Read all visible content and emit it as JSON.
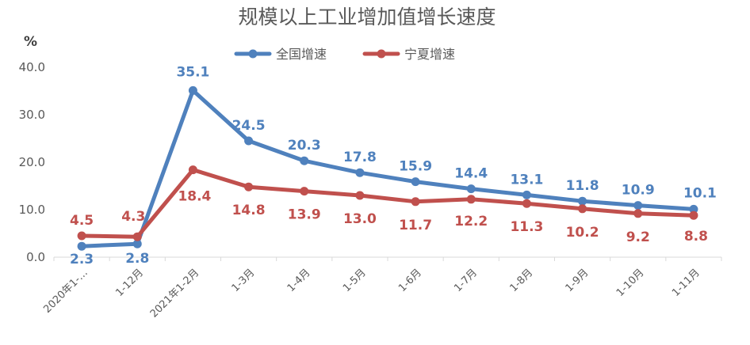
{
  "chart_data": {
    "type": "line",
    "title": "规模以上工业增加值增长速度",
    "ylabel": "%",
    "ylim": [
      0,
      40
    ],
    "yticks": [
      "0.0",
      "10.0",
      "20.0",
      "30.0",
      "40.0"
    ],
    "grid": false,
    "legend_position": "top-center",
    "categories": [
      "2020年1-…",
      "1-12月",
      "2021年1-2月",
      "1-3月",
      "1-4月",
      "1-5月",
      "1-6月",
      "1-7月",
      "1-8月",
      "1-9月",
      "1-10月",
      "1-11月"
    ],
    "series": [
      {
        "name": "全国增速",
        "color": "#4F81BD",
        "values": [
          2.3,
          2.8,
          35.1,
          24.5,
          20.3,
          17.8,
          15.9,
          14.4,
          13.1,
          11.8,
          10.9,
          10.1
        ],
        "labels": [
          "2.3",
          "2.8",
          "35.1",
          "24.5",
          "20.3",
          "17.8",
          "15.9",
          "14.4",
          "13.1",
          "11.8",
          "10.9",
          "10.1"
        ]
      },
      {
        "name": "宁夏增速",
        "color": "#C0504D",
        "values": [
          4.5,
          4.3,
          18.4,
          14.8,
          13.9,
          13.0,
          11.7,
          12.2,
          11.3,
          10.2,
          9.2,
          8.8
        ],
        "labels": [
          "4.5",
          "4.3",
          "18.4",
          "14.8",
          "13.9",
          "13.0",
          "11.7",
          "12.2",
          "11.3",
          "10.2",
          "9.2",
          "8.8"
        ]
      }
    ]
  }
}
